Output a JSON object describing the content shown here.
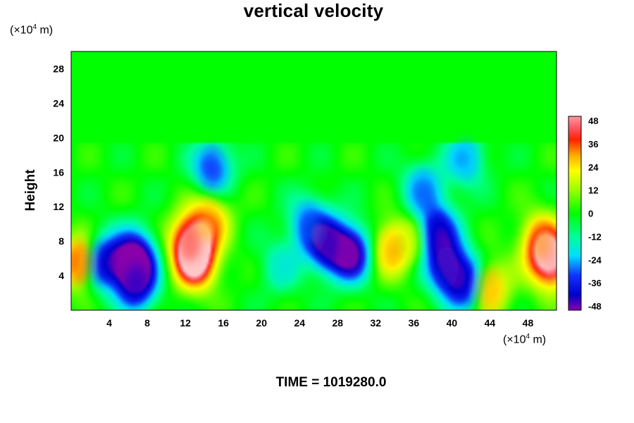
{
  "chart_data": {
    "type": "heatmap",
    "title": "vertical velocity",
    "ylabel": "Height",
    "yunit": {
      "pre": "(×10",
      "exp": "4",
      "post": " m)"
    },
    "xunit": {
      "pre": "(×10",
      "exp": "4",
      "post": " m)"
    },
    "x_ticks": [
      4,
      8,
      12,
      16,
      20,
      24,
      28,
      32,
      36,
      40,
      44,
      48
    ],
    "y_ticks": [
      4,
      8,
      12,
      16,
      20,
      24,
      28
    ],
    "xlim": [
      0,
      51
    ],
    "ylim": [
      0,
      30
    ],
    "colorbar": {
      "ticks": [
        48,
        36,
        24,
        12,
        0,
        -12,
        -24,
        -36,
        -48
      ],
      "range": [
        -48,
        48
      ]
    },
    "features": [
      {
        "x": 13,
        "y": 5.5,
        "value": 48
      },
      {
        "x": 12.5,
        "y": 8,
        "value": 38
      },
      {
        "x": 14.5,
        "y": 10.5,
        "value": 26
      },
      {
        "x": 50.5,
        "y": 5.5,
        "value": 46
      },
      {
        "x": 49.5,
        "y": 8,
        "value": 30
      },
      {
        "x": 0.8,
        "y": 5.5,
        "value": 34
      },
      {
        "x": 33.5,
        "y": 7,
        "value": 24
      },
      {
        "x": 35.5,
        "y": 8,
        "value": 14
      },
      {
        "x": 44,
        "y": 2.5,
        "value": 28
      },
      {
        "x": 6.6,
        "y": 6,
        "value": -48
      },
      {
        "x": 6.8,
        "y": 3,
        "value": -38
      },
      {
        "x": 3.3,
        "y": 5.5,
        "value": -40
      },
      {
        "x": 27,
        "y": 7.5,
        "value": -40
      },
      {
        "x": 29.5,
        "y": 6.5,
        "value": -46
      },
      {
        "x": 25,
        "y": 10,
        "value": -26
      },
      {
        "x": 39.5,
        "y": 5,
        "value": -36
      },
      {
        "x": 38.5,
        "y": 9,
        "value": -38
      },
      {
        "x": 37,
        "y": 14,
        "value": -24
      },
      {
        "x": 41.5,
        "y": 3,
        "value": -38
      },
      {
        "x": 14.8,
        "y": 16.5,
        "value": -30
      },
      {
        "x": 41.5,
        "y": 17.5,
        "value": -22
      },
      {
        "x": 22,
        "y": 5,
        "value": -14
      }
    ]
  },
  "time_label": "TIME = 1019280.0",
  "colors": {
    "background_field": "#00ff00",
    "positive_extreme": "#ffc8c8",
    "negative_extreme": "#9900aa"
  }
}
